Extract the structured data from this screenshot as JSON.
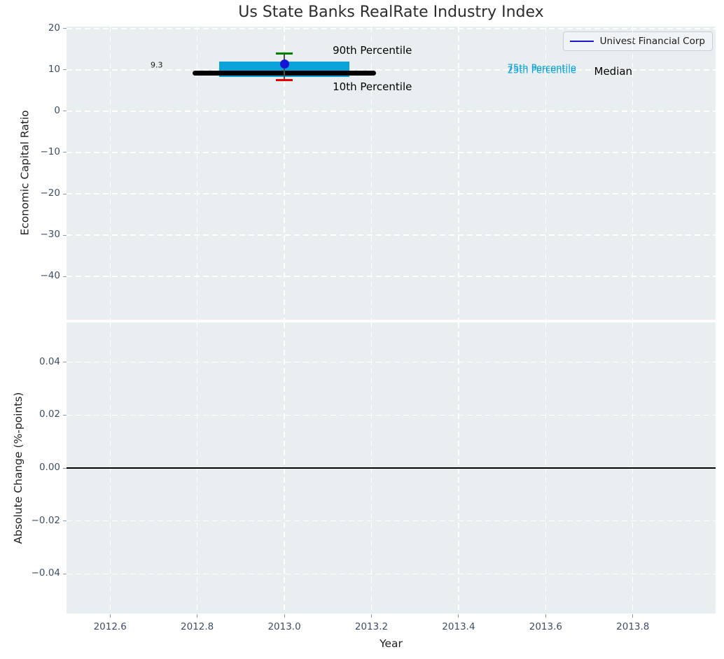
{
  "title": "Us State Banks RealRate Industry Index",
  "legend": {
    "label": "Univest Financial Corp",
    "line_color": "#1515d4",
    "position": "upper right"
  },
  "colors": {
    "axes_background": "#e9eef0",
    "grid": "#ffffff",
    "median_line": "#000000",
    "iqr_band": "#0ba2d8",
    "p90_cap": "#028002",
    "p10_cap": "#e60000",
    "company_marker": "#1515d4",
    "errorbar_line": "#4d4d4d",
    "tick_label": "#3e4e63",
    "axis_label": "#1f1f1f",
    "zero_line": "#000000"
  },
  "chart_data": [
    {
      "type": "errorbar",
      "title": "Us State Banks RealRate Industry Index",
      "xlabel": "Year",
      "ylabel": "Economic Capital Ratio",
      "xlim": [
        2012.5,
        2013.99
      ],
      "ylim": [
        -50.5,
        20.5
      ],
      "grid": {
        "visible": true,
        "style": "dashed",
        "color": "#ffffff"
      },
      "legend_position": "upper right",
      "xticks": {
        "values": [
          2012.6,
          2012.8,
          2013.0,
          2013.2,
          2013.4,
          2013.6,
          2013.8
        ],
        "labels": [
          "2012.6",
          "2012.8",
          "2013.0",
          "2013.2",
          "2013.4",
          "2013.6",
          "2013.8"
        ]
      },
      "yticks": {
        "values": [
          20,
          10,
          0,
          -10,
          -20,
          -30,
          -40
        ],
        "labels": [
          "20",
          "10",
          "0",
          "−10",
          "−20",
          "−30",
          "−40"
        ]
      },
      "points": {
        "x": 2013.0,
        "company_name": "Univest Financial Corp",
        "company_value": 11.5,
        "median": 9.3,
        "p90": 13.9,
        "p75": 12.1,
        "p25": 8.3,
        "p10": 7.5
      },
      "median_span_x": [
        2012.79,
        2013.21
      ],
      "iqr_span_x": [
        2012.85,
        2013.15
      ],
      "annotations": [
        {
          "name": "median-value-label",
          "text": "9.3",
          "x": 2012.707,
          "y": 11.2,
          "size": 11,
          "color": "#1a1a1a"
        },
        {
          "name": "p90-label",
          "text": "90th Percentile",
          "x": 2013.202,
          "y": 14.7,
          "size": 15,
          "color": "#000000"
        },
        {
          "name": "p10-label",
          "text": "10th Percentile",
          "x": 2013.202,
          "y": 5.9,
          "size": 15,
          "color": "#000000"
        },
        {
          "name": "p75-label",
          "text": "75th Percentile",
          "x": 2013.591,
          "y": 10.3,
          "size": 13,
          "color": "#0ba2d8"
        },
        {
          "name": "p25-label",
          "text": "25th Percentile",
          "x": 2013.591,
          "y": 9.8,
          "size": 13,
          "color": "#0ba2d8"
        },
        {
          "name": "median-label",
          "text": "Median",
          "x": 2013.755,
          "y": 9.7,
          "size": 15,
          "color": "#000000"
        }
      ]
    },
    {
      "type": "line",
      "xlabel": "Year",
      "ylabel": "Absolute Change (%-points)",
      "xlim": [
        2012.5,
        2013.99
      ],
      "ylim": [
        -0.055,
        0.055
      ],
      "grid": {
        "visible": true,
        "style": "dashed",
        "color": "#ffffff"
      },
      "yticks": {
        "values": [
          0.04,
          0.02,
          0.0,
          -0.02,
          -0.04
        ],
        "labels": [
          "0.04",
          "0.02",
          "0.00",
          "−0.02",
          "−0.04"
        ]
      },
      "zero_line_y": 0.0
    }
  ],
  "axis_labels": {
    "top_y": "Economic Capital Ratio",
    "bottom_y": "Absolute Change (%-points)",
    "x": "Year"
  }
}
